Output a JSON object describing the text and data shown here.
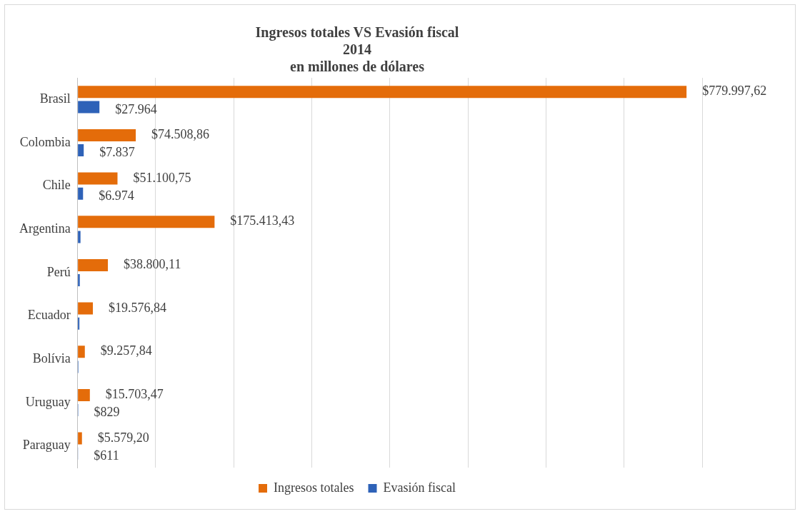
{
  "chart_data": {
    "type": "bar",
    "orientation": "horizontal",
    "title": "Ingresos totales VS Evasión fiscal\n2014\nen millones de dólares",
    "categories": [
      "Brasil",
      "Colombia",
      "Chile",
      "Argentina",
      "Perú",
      "Ecuador",
      "Bolívia",
      "Uruguay",
      "Paraguay"
    ],
    "series": [
      {
        "name": "Ingresos totales",
        "color": "#e46c0a",
        "values": [
          779997.62,
          74508.86,
          51100.75,
          175413.43,
          38800.11,
          19576.84,
          9257.84,
          15703.47,
          5579.2
        ],
        "value_labels": [
          "$779.997,62",
          "$74.508,86",
          "$51.100,75",
          "$175.413,43",
          "$38.800,11",
          "$19.576,84",
          "$9.257,84",
          "$15.703,47",
          "$5.579,20"
        ]
      },
      {
        "name": "Evasión fiscal",
        "color": "#2e62b8",
        "values": [
          27964,
          7837,
          6974,
          3700,
          2800,
          2300,
          1000,
          829,
          611
        ],
        "value_labels": [
          "$27.964",
          "$7.837",
          "$6.974",
          null,
          null,
          null,
          null,
          "$829",
          "$611"
        ]
      }
    ],
    "xlim": [
      0,
      800000
    ],
    "xticks": [
      {
        "value": 0,
        "label": null
      },
      {
        "value": 100000,
        "label": null
      },
      {
        "value": 200000,
        "label": null
      },
      {
        "value": 300000,
        "label": null
      },
      {
        "value": 400000,
        "label": null
      },
      {
        "value": 500000,
        "label": null
      },
      {
        "value": 600000,
        "label": null
      },
      {
        "value": 700000,
        "label": null
      },
      {
        "value": 800000,
        "label": null
      }
    ],
    "tick_labels": "y",
    "grid": "x",
    "legend": "bottom"
  }
}
